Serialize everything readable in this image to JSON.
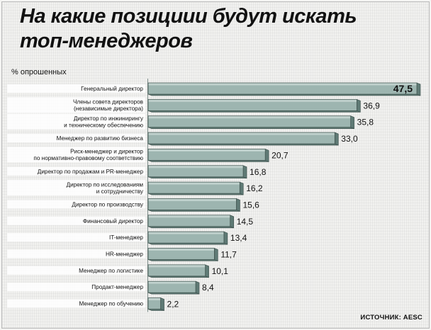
{
  "title_lines": [
    "На какие позициии будут искать",
    "топ-менеджеров"
  ],
  "unit_label": "% опрошенных",
  "source": "ИСТОЧНИК: AESC",
  "colors": {
    "bar_face": "#9db5b0",
    "bar_top": "#c9d8d4",
    "bar_side": "#5f7a75",
    "bar_outline": "#3d504c",
    "label_box": "#ffffff"
  },
  "chart_data": {
    "type": "bar",
    "orientation": "horizontal",
    "title": "На какие позициии будут искать топ-менеджеров",
    "ylabel": "% опрошенных",
    "categories": [
      [
        "Генеральный директор"
      ],
      [
        "Члены совета директоров",
        "(независимые директора)"
      ],
      [
        "Директор по инжинирингу",
        "и техническому обеспечению"
      ],
      [
        "Менеджер по развитию бизнеса"
      ],
      [
        "Риск-менеджер и директор",
        "по нормативно-правовому соответствию"
      ],
      [
        "Директор по продажам и PR-менеджер"
      ],
      [
        "Директор по исследованиям",
        "и сотрудничеству"
      ],
      [
        "Директор по производству"
      ],
      [
        "Финансовый директор"
      ],
      [
        "IT-менеджер"
      ],
      [
        "HR-менеджер"
      ],
      [
        "Менеджер по логистике"
      ],
      [
        "Продакт-менеджер"
      ],
      [
        "Менеджер по обучению"
      ]
    ],
    "values": [
      47.5,
      36.9,
      35.8,
      33.0,
      20.7,
      16.8,
      16.2,
      15.6,
      14.5,
      13.4,
      11.7,
      10.1,
      8.4,
      2.2
    ],
    "value_labels": [
      "47,5",
      "36,9",
      "35,8",
      "33,0",
      "20,7",
      "16,8",
      "16,2",
      "15,6",
      "14,5",
      "13,4",
      "11,7",
      "10,1",
      "8,4",
      "2,2"
    ],
    "xlim": [
      0,
      47.5
    ],
    "grid": false,
    "legend": "none"
  }
}
